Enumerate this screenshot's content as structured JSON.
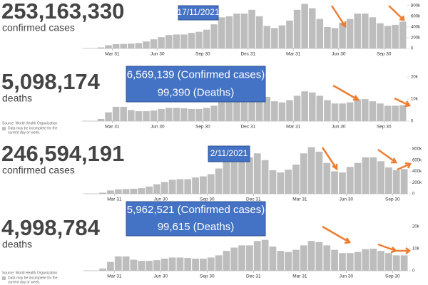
{
  "chart_data": [
    {
      "type": "bar",
      "title": "253,163,330",
      "subtitle": "confirmed cases",
      "color": "#bdbdbd",
      "annotations": [
        "17/11/2021"
      ],
      "values": [
        2000,
        2000,
        20000,
        60000,
        80000,
        85000,
        90000,
        100000,
        130000,
        170000,
        210000,
        250000,
        260000,
        260000,
        290000,
        310000,
        350000,
        450000,
        580000,
        600000,
        650000,
        650000,
        720000,
        600000,
        420000,
        380000,
        430000,
        520000,
        720000,
        830000,
        750000,
        550000,
        400000,
        380000,
        480000,
        550000,
        650000,
        650000,
        580000,
        470000,
        420000,
        440000,
        500000
      ],
      "xlim": [
        -0.5,
        42.5
      ],
      "xticks": [
        {
          "value": 3.5,
          "label": "Mar 31"
        },
        {
          "value": 9.5,
          "label": "Jun 30"
        },
        {
          "value": 15.5,
          "label": "Sep 30"
        },
        {
          "value": 21.5,
          "label": "Dec 31"
        },
        {
          "value": 27.5,
          "label": "Mar 31"
        },
        {
          "value": 33.5,
          "label": "Jun 30"
        },
        {
          "value": 39.5,
          "label": "Sep 30"
        }
      ],
      "ylim": [
        0,
        850000
      ],
      "yticks": [
        0,
        {
          "value": 200000,
          "label": "200k"
        },
        {
          "value": 400000,
          "label": "400k"
        },
        {
          "value": 600000,
          "label": "600k"
        },
        {
          "value": 800000,
          "label": "800k"
        }
      ]
    },
    {
      "type": "bar",
      "title": "5,098,174",
      "subtitle": "deaths",
      "color": "#bdbdbd",
      "annotations": [
        "6,569,139 (Confirmed cases)",
        "99,390 (Deaths)"
      ],
      "source": "Source: World Health Organization",
      "note": [
        "Data may be incomplete for the",
        "current day or week."
      ],
      "values": [
        100,
        100,
        1000,
        4000,
        6500,
        6500,
        5000,
        4500,
        4500,
        4800,
        5500,
        6000,
        6000,
        5800,
        5500,
        5500,
        6000,
        7000,
        9000,
        10500,
        11500,
        11500,
        13500,
        14000,
        11000,
        9000,
        8500,
        9500,
        11500,
        13500,
        13000,
        11500,
        9500,
        8000,
        8000,
        8500,
        9800,
        10000,
        9000,
        8000,
        7000,
        7000,
        7200
      ],
      "xlim": [
        -0.5,
        42.5
      ],
      "xticks": [
        {
          "value": 3.5,
          "label": "Mar 31"
        },
        {
          "value": 9.5,
          "label": "Jun 30"
        },
        {
          "value": 15.5,
          "label": "Sep 30"
        },
        {
          "value": 21.5,
          "label": "Dec 31"
        },
        {
          "value": 27.5,
          "label": "Mar 31"
        },
        {
          "value": 33.5,
          "label": "Jun 30"
        },
        {
          "value": 39.5,
          "label": "Sep 30"
        }
      ],
      "ylim": [
        0,
        21000
      ],
      "yticks": [
        0,
        {
          "value": 10000,
          "label": "10k"
        },
        {
          "value": 20000,
          "label": "20k"
        }
      ]
    },
    {
      "type": "bar",
      "title": "246,594,191",
      "subtitle": "confirmed cases",
      "color": "#bdbdbd",
      "annotations": [
        "2/11/2021"
      ],
      "values": [
        2000,
        2000,
        20000,
        60000,
        80000,
        85000,
        90000,
        100000,
        130000,
        170000,
        210000,
        250000,
        260000,
        260000,
        290000,
        310000,
        350000,
        450000,
        580000,
        600000,
        650000,
        650000,
        720000,
        600000,
        420000,
        380000,
        430000,
        520000,
        720000,
        830000,
        750000,
        550000,
        400000,
        380000,
        480000,
        550000,
        650000,
        650000,
        580000,
        470000,
        420000,
        440000
      ],
      "xlim": [
        -0.5,
        41.5
      ],
      "xticks": [
        {
          "value": 3.5,
          "label": "Mar 31"
        },
        {
          "value": 9.5,
          "label": "Jun 30"
        },
        {
          "value": 15.5,
          "label": "Sep 30"
        },
        {
          "value": 21.5,
          "label": "Dec 31"
        },
        {
          "value": 27.5,
          "label": "Mar 31"
        },
        {
          "value": 33.5,
          "label": "Jun 30"
        },
        {
          "value": 39.5,
          "label": "Sep 30"
        }
      ],
      "ylim": [
        0,
        850000
      ],
      "yticks": [
        0,
        {
          "value": 200000,
          "label": "200k"
        },
        {
          "value": 400000,
          "label": "400k"
        },
        {
          "value": 600000,
          "label": "600k"
        },
        {
          "value": 800000,
          "label": "800k"
        }
      ]
    },
    {
      "type": "bar",
      "title": "4,998,784",
      "subtitle": "deaths",
      "color": "#bdbdbd",
      "annotations": [
        "5,962,521 (Confirmed cases)",
        "99,615 (Deaths)"
      ],
      "source": "Source: World Health Organization",
      "note": [
        "Data may be incomplete for the",
        "current day or week."
      ],
      "values": [
        100,
        100,
        1000,
        4000,
        6500,
        6500,
        5000,
        4500,
        4500,
        4800,
        5500,
        6000,
        6000,
        5800,
        5500,
        5500,
        6000,
        7000,
        9000,
        10500,
        11500,
        11500,
        13500,
        14000,
        11000,
        9000,
        8500,
        9500,
        11500,
        13500,
        13000,
        11500,
        9500,
        8000,
        8000,
        8500,
        9800,
        10000,
        9000,
        8000,
        7000,
        7000
      ],
      "xlim": [
        -0.5,
        41.5
      ],
      "xticks": [
        {
          "value": 3.5,
          "label": "Mar 31"
        },
        {
          "value": 9.5,
          "label": "Jun 30"
        },
        {
          "value": 15.5,
          "label": "Sep 30"
        },
        {
          "value": 21.5,
          "label": "Dec 31"
        },
        {
          "value": 27.5,
          "label": "Mar 31"
        },
        {
          "value": 33.5,
          "label": "Jun 30"
        },
        {
          "value": 39.5,
          "label": "Sep 30"
        }
      ],
      "ylim": [
        0,
        21000
      ],
      "yticks": [
        0,
        {
          "value": 10000,
          "label": "10k"
        },
        {
          "value": 20000,
          "label": "20k"
        }
      ]
    }
  ]
}
